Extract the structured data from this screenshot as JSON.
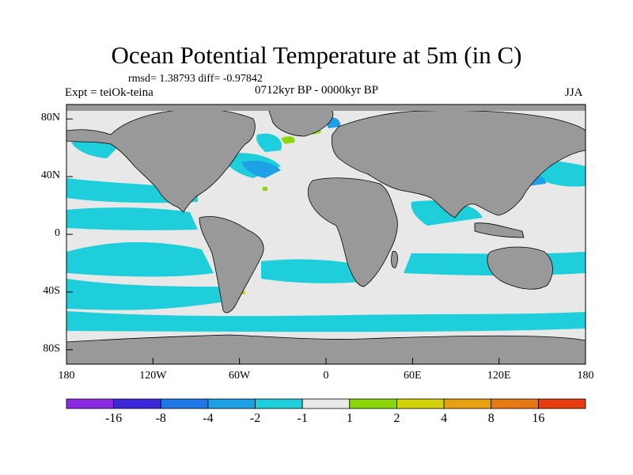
{
  "title": "Ocean Potential Temperature at 5m (in C)",
  "stats": "rmsd= 1.38793 diff= -0.97842",
  "experiment": "Expt = teiOk-teina",
  "period": "0712kyr BP - 0000kyr BP",
  "season": "JJA",
  "map": {
    "projection": "cylindrical equidistant",
    "lon_range": [
      -180,
      180
    ],
    "lat_range": [
      -90,
      90
    ],
    "y_ticks": [
      {
        "label": "80N",
        "lat": 80
      },
      {
        "label": "40N",
        "lat": 40
      },
      {
        "label": "0",
        "lat": 0
      },
      {
        "label": "40S",
        "lat": -40
      },
      {
        "label": "80S",
        "lat": -80
      }
    ],
    "x_ticks": [
      {
        "label": "180",
        "lon": -180
      },
      {
        "label": "120W",
        "lon": -120
      },
      {
        "label": "60W",
        "lon": -60
      },
      {
        "label": "0",
        "lon": 0
      },
      {
        "label": "60E",
        "lon": 60
      },
      {
        "label": "120E",
        "lon": 120
      },
      {
        "label": "180",
        "lon": 180
      }
    ],
    "land_color": "#999999",
    "background_ocean_color": "#e8e8e8"
  },
  "colorbar": {
    "colors": [
      "#8a2be2",
      "#3c28d8",
      "#1e78e6",
      "#1ea0e6",
      "#1ecfdb",
      "#e8e8e8",
      "#8cd70a",
      "#d2d20a",
      "#e6a010",
      "#e67814",
      "#e63c0f"
    ],
    "labels": [
      "-16",
      "-8",
      "-4",
      "-2",
      "-1",
      "1",
      "2",
      "4",
      "8",
      "16"
    ]
  }
}
